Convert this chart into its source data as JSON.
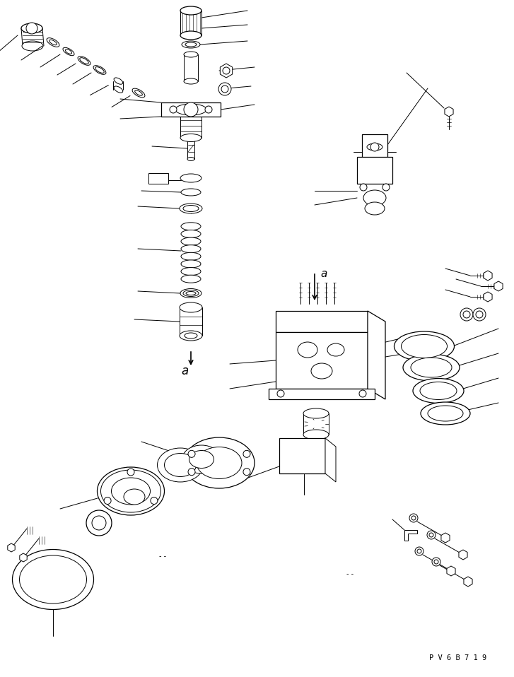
{
  "bg_color": "#ffffff",
  "line_color": "#000000",
  "fig_width": 7.27,
  "fig_height": 9.58,
  "dpi": 100,
  "watermark_text": "P V 6 B 7 1 9"
}
